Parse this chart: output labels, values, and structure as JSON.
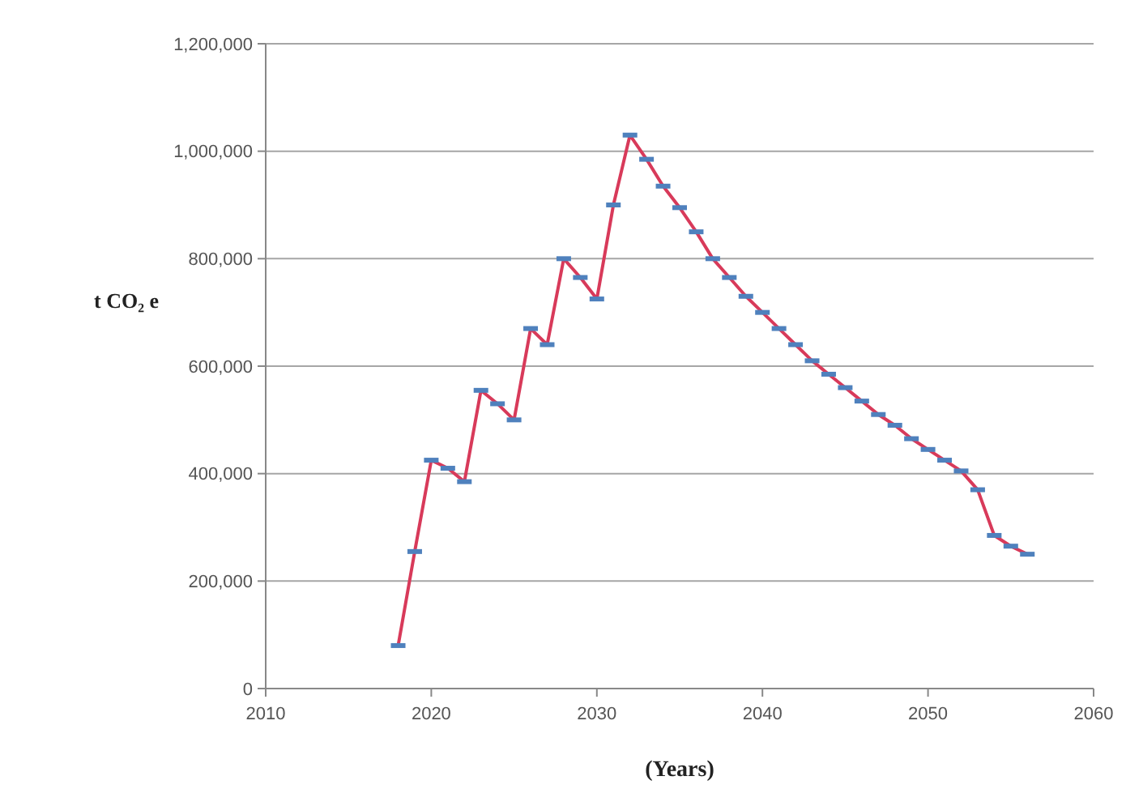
{
  "chart_data": {
    "type": "line",
    "xlabel": "(Years)",
    "ylabel": "t CO₂ e",
    "x": [
      2018,
      2019,
      2020,
      2021,
      2022,
      2023,
      2024,
      2025,
      2026,
      2027,
      2028,
      2029,
      2030,
      2031,
      2032,
      2033,
      2034,
      2035,
      2036,
      2037,
      2038,
      2039,
      2040,
      2041,
      2042,
      2043,
      2044,
      2045,
      2046,
      2047,
      2048,
      2049,
      2050,
      2051,
      2052,
      2053,
      2054,
      2055,
      2056
    ],
    "series": [
      {
        "color": "#d83a5a",
        "values": [
          80000,
          255000,
          425000,
          410000,
          385000,
          555000,
          530000,
          500000,
          670000,
          640000,
          800000,
          765000,
          725000,
          900000,
          1030000,
          985000,
          935000,
          895000,
          850000,
          800000,
          765000,
          730000,
          700000,
          670000,
          640000,
          610000,
          585000,
          560000,
          535000,
          510000,
          490000,
          465000,
          445000,
          425000,
          405000,
          370000,
          285000,
          265000,
          250000
        ]
      }
    ],
    "xlim": [
      2010,
      2060
    ],
    "xticks": [
      2010,
      2020,
      2030,
      2040,
      2050,
      2060
    ],
    "ylim": [
      0,
      1200000
    ],
    "yticks": [
      0,
      {
        "value": 200000,
        "label": "200,000"
      },
      {
        "value": 400000,
        "label": "400,000"
      },
      {
        "value": 600000,
        "label": "600,000"
      },
      {
        "value": 800000,
        "label": "800,000"
      },
      {
        "value": 1000000,
        "label": "1,000,000"
      },
      {
        "value": 1200000,
        "label": "1,200,000"
      }
    ],
    "grid": "y",
    "marker": "square"
  }
}
